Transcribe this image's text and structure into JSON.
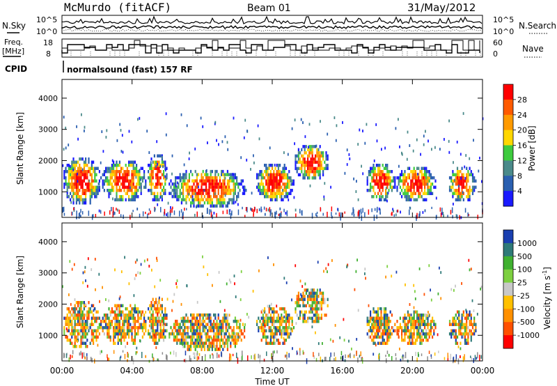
{
  "header": {
    "station": "McMurdo (fitACF)",
    "beam": "Beam 01",
    "date": "31/May/2012"
  },
  "aux_panels": {
    "nsky_label": "N.Sky",
    "nsearch_label": "N.Search",
    "noise_ticks_left": [
      "10^5",
      "10^0"
    ],
    "noise_ticks_right": [
      "10^5",
      "10^0"
    ],
    "freq_label_line1": "Freq.",
    "freq_label_line2": "[MHz]",
    "freq_ticks": [
      "18",
      "8"
    ],
    "nave_label": "Nave",
    "nave_ticks": [
      "60",
      "0"
    ],
    "cpid_label": "CPID",
    "cpid_text": "normalsound (fast) 157 RF"
  },
  "colors": {
    "scale_blue": "#1a1aff",
    "scale_red": "#ff0000",
    "ground_scatter": "#8c8c8c"
  },
  "chart_data": [
    {
      "type": "heatmap",
      "name": "power",
      "ylabel": "Slant Range [km]",
      "xlabel": "",
      "x_ticks": [
        "00:00",
        "04:00",
        "08:00",
        "12:00",
        "16:00",
        "20:00",
        "00:00"
      ],
      "x_hours": [
        0,
        4,
        8,
        12,
        16,
        20,
        24
      ],
      "xlim": [
        0,
        24
      ],
      "y_ticks": [
        1000,
        2000,
        3000,
        4000
      ],
      "ylim": [
        180,
        4600
      ],
      "colorbar_label": "Power [dB]",
      "colorbar_ticks": [
        "28",
        "24",
        "20",
        "16",
        "12",
        "8",
        "4"
      ],
      "colorbar_colors": [
        "#ff0000",
        "#ff5a00",
        "#ff9a00",
        "#ffd700",
        "#3ecb3e",
        "#4a8a8a",
        "#2a5fb0",
        "#1a1aff"
      ],
      "echo_regions": [
        {
          "t_start": 0.0,
          "t_end": 2.2,
          "r_min": 600,
          "r_max": 2200
        },
        {
          "t_start": 2.2,
          "t_end": 4.8,
          "r_min": 700,
          "r_max": 2100
        },
        {
          "t_start": 4.8,
          "t_end": 6.0,
          "r_min": 700,
          "r_max": 2300
        },
        {
          "t_start": 6.0,
          "t_end": 10.5,
          "r_min": 500,
          "r_max": 1800
        },
        {
          "t_start": 11.0,
          "t_end": 13.2,
          "r_min": 700,
          "r_max": 2000
        },
        {
          "t_start": 13.2,
          "t_end": 15.2,
          "r_min": 1400,
          "r_max": 2600
        },
        {
          "t_start": 17.3,
          "t_end": 19.0,
          "r_min": 700,
          "r_max": 2000
        },
        {
          "t_start": 19.0,
          "t_end": 21.3,
          "r_min": 700,
          "r_max": 1900
        },
        {
          "t_start": 22.0,
          "t_end": 23.6,
          "r_min": 700,
          "r_max": 1900
        }
      ]
    },
    {
      "type": "heatmap",
      "name": "velocity",
      "ylabel": "Slant Range [km]",
      "xlabel": "Time UT",
      "x_ticks": [
        "00:00",
        "04:00",
        "08:00",
        "12:00",
        "16:00",
        "20:00",
        "00:00"
      ],
      "x_hours": [
        0,
        4,
        8,
        12,
        16,
        20,
        24
      ],
      "xlim": [
        0,
        24
      ],
      "y_ticks": [
        1000,
        2000,
        3000,
        4000
      ],
      "ylim": [
        180,
        4600
      ],
      "colorbar_label": "Velocity [m s",
      "colorbar_label_sup": "-1",
      "colorbar_label_end": "]",
      "colorbar_ticks": [
        "1000",
        "500",
        "100",
        "25",
        "-25",
        "-100",
        "-500",
        "-1000"
      ],
      "colorbar_colors": [
        "#1a3fb0",
        "#2f7a78",
        "#40b030",
        "#7dd040",
        "#c8c8c8",
        "#ffc000",
        "#ff9000",
        "#ff5000",
        "#ff0000"
      ],
      "echo_regions": [
        {
          "t_start": 0.0,
          "t_end": 2.2,
          "r_min": 600,
          "r_max": 2200
        },
        {
          "t_start": 2.2,
          "t_end": 4.8,
          "r_min": 700,
          "r_max": 2100
        },
        {
          "t_start": 4.8,
          "t_end": 6.0,
          "r_min": 700,
          "r_max": 2300
        },
        {
          "t_start": 6.0,
          "t_end": 10.5,
          "r_min": 500,
          "r_max": 1800
        },
        {
          "t_start": 11.0,
          "t_end": 13.2,
          "r_min": 700,
          "r_max": 2000
        },
        {
          "t_start": 13.2,
          "t_end": 15.2,
          "r_min": 1400,
          "r_max": 2600
        },
        {
          "t_start": 17.3,
          "t_end": 19.0,
          "r_min": 700,
          "r_max": 2000
        },
        {
          "t_start": 19.0,
          "t_end": 21.3,
          "r_min": 700,
          "r_max": 1900
        },
        {
          "t_start": 22.0,
          "t_end": 23.6,
          "r_min": 700,
          "r_max": 1900
        }
      ]
    }
  ]
}
